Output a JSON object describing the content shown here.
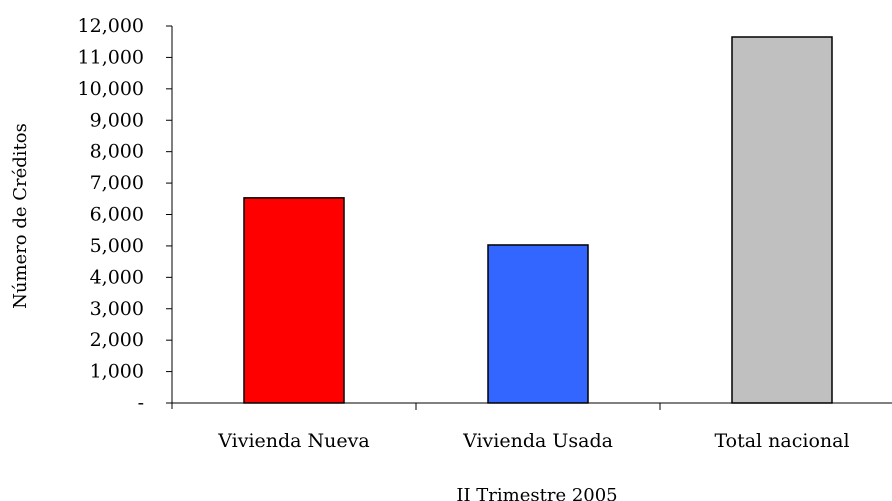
{
  "chart_data": {
    "type": "bar",
    "title": "",
    "xlabel": "II Trimestre 2005",
    "ylabel": "Número de Créditos",
    "categories": [
      "Vivienda Nueva",
      "Vivienda Usada",
      "Total nacional"
    ],
    "values": [
      6530,
      5030,
      11650
    ],
    "colors": [
      "#ff0000",
      "#3366ff",
      "#c0c0c0"
    ],
    "ylim": [
      0,
      12000
    ],
    "yticks": [
      0,
      1000,
      2000,
      3000,
      4000,
      5000,
      6000,
      7000,
      8000,
      9000,
      10000,
      11000,
      12000
    ],
    "ytick_labels": [
      "-",
      "1,000",
      "2,000",
      "3,000",
      "4,000",
      "5,000",
      "6,000",
      "7,000",
      "8,000",
      "9,000",
      "10,000",
      "11,000",
      "12,000"
    ],
    "grid": false,
    "legend": "none"
  }
}
